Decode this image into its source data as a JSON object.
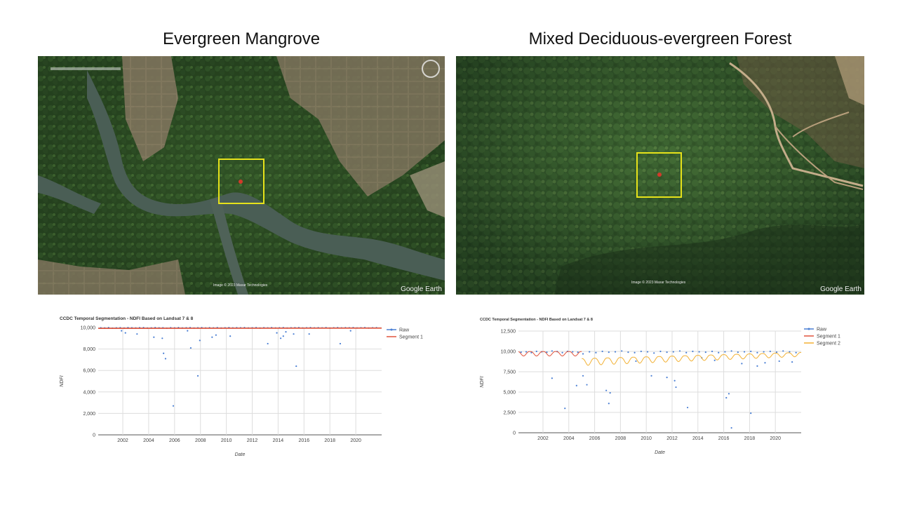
{
  "panels": [
    {
      "title": "Evergreen Mangrove",
      "image": {
        "credit": "Image © 2023 Maxar Technologies",
        "brand": "Google Earth"
      }
    },
    {
      "title": "Mixed Deciduous-evergreen Forest",
      "image": {
        "credit": "Image © 2023 Maxar Technologies",
        "brand": "Google Earth"
      }
    }
  ],
  "colors": {
    "raw": "#4a7fd4",
    "segment1": "#e0533c",
    "segment2": "#f2b134",
    "selection_box": "#e6e21a",
    "pixel_marker": "#d23a2a"
  },
  "chart_data": [
    {
      "type": "scatter",
      "title": "CCDC Temporal Segmentation - NDFI Based on Landsat 7 & 8",
      "xlabel": "Date",
      "ylabel": "NDFI",
      "xlim": [
        2000.1,
        2022.0
      ],
      "ylim": [
        0,
        10000
      ],
      "x_ticks": [
        "2002",
        "2004",
        "2006",
        "2008",
        "2010",
        "2012",
        "2014",
        "2016",
        "2018",
        "2020"
      ],
      "y_ticks": [
        "0",
        "2,000",
        "4,000",
        "6,000",
        "8,000",
        "10,000"
      ],
      "grid": true,
      "legend_position": "top-right",
      "series": [
        {
          "name": "Raw",
          "style": "points",
          "x": [
            2000.3,
            2000.6,
            2000.9,
            2001.2,
            2001.5,
            2001.8,
            2002.1,
            2002.4,
            2002.7,
            2003.0,
            2003.3,
            2003.6,
            2003.9,
            2004.2,
            2004.5,
            2004.8,
            2005.1,
            2005.4,
            2005.7,
            2006.0,
            2006.3,
            2006.6,
            2006.9,
            2007.2,
            2007.5,
            2007.8,
            2008.1,
            2008.4,
            2008.7,
            2009.0,
            2009.3,
            2009.6,
            2009.9,
            2010.2,
            2010.5,
            2010.8,
            2011.1,
            2011.4,
            2011.7,
            2012.0,
            2012.3,
            2012.6,
            2012.9,
            2013.2,
            2013.5,
            2013.8,
            2014.1,
            2014.4,
            2014.7,
            2015.0,
            2015.3,
            2015.6,
            2015.9,
            2016.2,
            2016.5,
            2016.8,
            2017.1,
            2017.4,
            2017.7,
            2018.0,
            2018.3,
            2018.6,
            2018.9,
            2019.2,
            2019.5,
            2019.8,
            2020.1,
            2020.4,
            2020.7,
            2021.0,
            2021.3,
            2021.6,
            2001.9,
            2002.2,
            2003.1,
            2004.4,
            2005.05,
            2005.15,
            2005.3,
            2005.9,
            2007.0,
            2007.25,
            2007.8,
            2007.95,
            2008.9,
            2009.2,
            2010.3,
            2013.2,
            2013.9,
            2014.2,
            2014.4,
            2014.6,
            2015.2,
            2015.4,
            2016.4,
            2018.8,
            2019.6
          ],
          "y": [
            9980,
            9960,
            9990,
            9940,
            9970,
            9985,
            9950,
            9990,
            9975,
            9960,
            9985,
            9995,
            9950,
            9970,
            9990,
            9965,
            9980,
            9940,
            9985,
            9970,
            9995,
            9960,
            9980,
            9990,
            9955,
            9975,
            9990,
            9960,
            9985,
            9970,
            9995,
            9950,
            9980,
            9990,
            9965,
            9985,
            9975,
            9995,
            9960,
            9980,
            9990,
            9950,
            9985,
            9970,
            9995,
            9960,
            9980,
            9990,
            9955,
            9975,
            9985,
            9995,
            9960,
            9980,
            9990,
            9965,
            9985,
            9970,
            9995,
            9950,
            9980,
            9990,
            9965,
            9985,
            9975,
            9995,
            9960,
            9980,
            9990,
            9955,
            9975,
            9985,
            9700,
            9500,
            9400,
            9100,
            9000,
            7600,
            7100,
            2700,
            9700,
            8100,
            5500,
            8800,
            9100,
            9300,
            9200,
            8500,
            9500,
            9000,
            9200,
            9600,
            9400,
            6400,
            9400,
            8500,
            9700
          ]
        },
        {
          "name": "Segment 1",
          "style": "line",
          "x": [
            2000.1,
            2022.0
          ],
          "y": [
            9920,
            9950
          ]
        }
      ]
    },
    {
      "type": "scatter",
      "title": "CCDC Temporal Segmentation - NDFI Based on Landsat 7 & 8",
      "xlabel": "Date",
      "ylabel": "NDFI",
      "xlim": [
        2000.1,
        2022.0
      ],
      "ylim": [
        0,
        12500
      ],
      "x_ticks": [
        "2002",
        "2004",
        "2006",
        "2008",
        "2010",
        "2012",
        "2014",
        "2016",
        "2018",
        "2020"
      ],
      "y_ticks": [
        "0",
        "2,500",
        "5,000",
        "7,500",
        "10,000",
        "12,500"
      ],
      "grid": true,
      "legend_position": "top-right",
      "series": [
        {
          "name": "Raw",
          "style": "points",
          "x": [
            2000.3,
            2000.7,
            2001.1,
            2001.5,
            2001.9,
            2002.3,
            2002.7,
            2003.1,
            2003.5,
            2003.9,
            2004.3,
            2004.7,
            2005.1,
            2005.6,
            2006.1,
            2006.6,
            2007.1,
            2007.6,
            2008.1,
            2008.6,
            2009.1,
            2009.6,
            2010.1,
            2010.6,
            2011.1,
            2011.6,
            2012.1,
            2012.6,
            2013.1,
            2013.6,
            2014.1,
            2014.6,
            2015.1,
            2015.6,
            2016.1,
            2016.6,
            2017.1,
            2017.6,
            2018.1,
            2018.6,
            2019.1,
            2019.6,
            2020.1,
            2020.6,
            2021.1,
            2021.6,
            2002.7,
            2003.7,
            2004.6,
            2005.1,
            2005.4,
            2006.9,
            2007.1,
            2007.2,
            2009.2,
            2010.4,
            2011.6,
            2012.2,
            2012.3,
            2013.2,
            2014.3,
            2015.3,
            2016.2,
            2016.4,
            2016.6,
            2017.4,
            2018.1,
            2018.6,
            2019.2,
            2020.3,
            2021.3
          ],
          "y": [
            9900,
            9950,
            9850,
            10000,
            9950,
            9900,
            10050,
            9980,
            9850,
            10000,
            9950,
            9900,
            9700,
            9950,
            9850,
            10000,
            9900,
            9950,
            10050,
            9900,
            9850,
            10000,
            9950,
            9800,
            10000,
            9900,
            9950,
            10050,
            9850,
            10000,
            9950,
            9900,
            10000,
            9850,
            9950,
            10050,
            9900,
            9950,
            10000,
            9850,
            9950,
            10000,
            9900,
            10050,
            9950,
            9850,
            6700,
            3000,
            5800,
            7000,
            5900,
            5200,
            3600,
            4900,
            8800,
            7000,
            6800,
            6400,
            5600,
            3100,
            9200,
            8900,
            4300,
            4800,
            600,
            8500,
            2400,
            8200,
            8600,
            8800,
            8700
          ]
        },
        {
          "name": "Segment 1",
          "style": "seasonal-line",
          "x_range": [
            2000.1,
            2005.0
          ],
          "mean": 9850,
          "amplitude": 550
        },
        {
          "name": "Segment 2",
          "style": "seasonal-line",
          "x_range": [
            2005.0,
            2022.0
          ],
          "mean_start": 8900,
          "mean_end": 9750,
          "amplitude_start": 850,
          "amplitude_end": 500
        }
      ]
    }
  ]
}
